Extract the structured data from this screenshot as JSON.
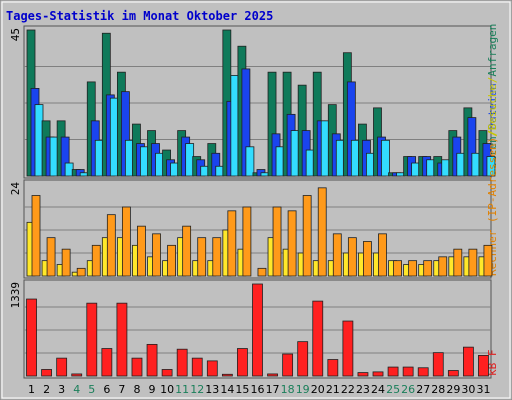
{
  "chart_data": {
    "type": "bar",
    "title": "Tages-Statistik im Monat Oktober 2025",
    "categories": [
      "1",
      "2",
      "3",
      "4",
      "5",
      "6",
      "7",
      "8",
      "9",
      "10",
      "11",
      "12",
      "13",
      "14",
      "15",
      "16",
      "17",
      "18",
      "19",
      "20",
      "21",
      "22",
      "23",
      "24",
      "25",
      "26",
      "27",
      "28",
      "29",
      "30",
      "31"
    ],
    "weekend_days": [
      "4",
      "5",
      "11",
      "12",
      "18",
      "19",
      "25",
      "26"
    ],
    "panels": [
      {
        "name": "requests",
        "ymax": 45,
        "ymax_label": "45",
        "right_legend": [
          {
            "text": "Seiten",
            "color": "#1a7f5a"
          },
          {
            "text": "/",
            "color": "#c8c800"
          },
          {
            "text": "Dateien",
            "color": "#1240e6"
          },
          {
            "text": "/",
            "color": "#c8c800"
          },
          {
            "text": "Anfragen",
            "color": "#1a7f5a"
          }
        ],
        "series": [
          {
            "name": "Anfragen",
            "color": "#0f7a5a",
            "values": [
              45,
              17,
              17,
              2,
              29,
              44,
              32,
              16,
              14,
              8,
              14,
              6,
              10,
              45,
              40,
              1,
              32,
              32,
              28,
              32,
              22,
              38,
              16,
              21,
              1,
              6,
              6,
              6,
              14,
              21,
              14
            ]
          },
          {
            "name": "Dateien",
            "color": "#1a44ee",
            "values": [
              27,
              12,
              12,
              2,
              17,
              25,
              26,
              10,
              10,
              5,
              12,
              5,
              7,
              23,
              33,
              2,
              13,
              19,
              14,
              17,
              13,
              29,
              11,
              12,
              1,
              6,
              6,
              4,
              12,
              18,
              10
            ]
          },
          {
            "name": "Seiten",
            "color": "#33ddff",
            "values": [
              22,
              12,
              4,
              1,
              11,
              24,
              11,
              9,
              7,
              4,
              10,
              3,
              3,
              31,
              9,
              1,
              9,
              14,
              8,
              17,
              11,
              11,
              7,
              11,
              1,
              4,
              5,
              5,
              7,
              7,
              6
            ]
          }
        ]
      },
      {
        "name": "visits",
        "ymax": 24,
        "ymax_label": "24",
        "right_legend": [
          {
            "text": "Rechner (IP-Adressen)",
            "color": "#e08000"
          },
          {
            "text": "/",
            "color": "#c8c800"
          },
          {
            "text": "Besuche",
            "color": "#c8c800"
          }
        ],
        "series": [
          {
            "name": "Besuche",
            "color": "#ffe82a",
            "values": [
              14,
              4,
              3,
              1,
              4,
              10,
              10,
              8,
              5,
              4,
              10,
              4,
              4,
              12,
              7,
              0,
              10,
              7,
              6,
              4,
              4,
              6,
              6,
              6,
              4,
              3,
              3,
              4,
              5,
              5,
              5
            ]
          },
          {
            "name": "Rechner (IP-Adressen)",
            "color": "#ff9a1a",
            "values": [
              21,
              10,
              7,
              2,
              8,
              16,
              18,
              13,
              11,
              8,
              13,
              10,
              10,
              17,
              18,
              2,
              18,
              17,
              21,
              23,
              11,
              10,
              9,
              11,
              4,
              4,
              4,
              5,
              7,
              7,
              8
            ]
          }
        ]
      },
      {
        "name": "traffic",
        "ymax": 1339,
        "ymax_label": "1339",
        "right_legend": [
          {
            "text": "kB F",
            "color": "#e02020"
          }
        ],
        "series": [
          {
            "name": "kB F",
            "color": "#ff2020",
            "values": [
              1120,
              95,
              260,
              30,
              1060,
              400,
              1060,
              260,
              460,
              95,
              390,
              260,
              220,
              25,
              400,
              1339,
              30,
              320,
              500,
              1090,
              240,
              800,
              50,
              60,
              130,
              130,
              120,
              340,
              80,
              420,
              300
            ]
          }
        ]
      }
    ]
  }
}
